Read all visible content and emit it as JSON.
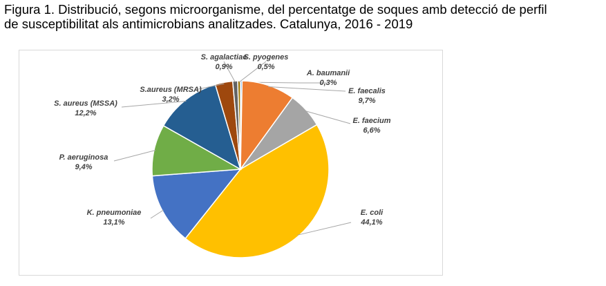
{
  "figure": {
    "title_line1": "Figura 1. Distribució, segons microorganisme, del percentatge de soques amb detecció de perfil",
    "title_line2": "de susceptibilitat als antimicrobians analitzades. Catalunya, 2016 - 2019"
  },
  "chart_data": {
    "type": "pie",
    "title": "",
    "slices": [
      {
        "label": "A. baumanii",
        "value": 0.3,
        "value_label": "0,3%",
        "color": "#5B9BD5"
      },
      {
        "label": "E. faecalis",
        "value": 9.7,
        "value_label": "9,7%",
        "color": "#ED7D31"
      },
      {
        "label": "E. faecium",
        "value": 6.6,
        "value_label": "6,6%",
        "color": "#A5A5A5"
      },
      {
        "label": "E. coli",
        "value": 44.1,
        "value_label": "44,1%",
        "color": "#FFC000"
      },
      {
        "label": "K. pneumoniae",
        "value": 13.1,
        "value_label": "13,1%",
        "color": "#4472C4"
      },
      {
        "label": "P. aeruginosa",
        "value": 9.4,
        "value_label": "9,4%",
        "color": "#70AD47"
      },
      {
        "label": "S. aureus (MSSA)",
        "value": 12.2,
        "value_label": "12,2%",
        "color": "#255E91"
      },
      {
        "label": "S.aureus (MRSA)",
        "value": 3.2,
        "value_label": "3,2%",
        "color": "#9E480E"
      },
      {
        "label": "S. agalactiae",
        "value": 0.9,
        "value_label": "0,9%",
        "color": "#636363"
      },
      {
        "label": "S. pyogenes",
        "value": 0.5,
        "value_label": "0,5%",
        "color": "#997300"
      }
    ]
  }
}
